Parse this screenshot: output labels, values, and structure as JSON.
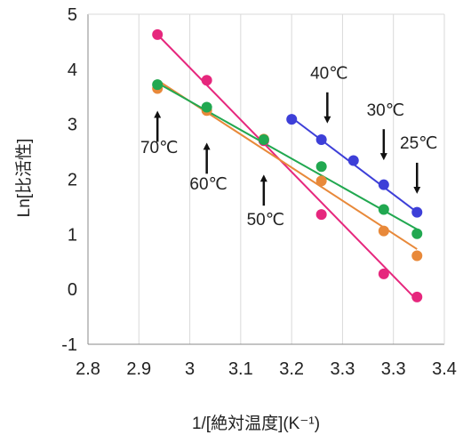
{
  "chart_data": {
    "type": "scatter",
    "xlabel": "1/[絶対温度](K⁻¹)",
    "ylabel": "Ln[比活性]",
    "xlim": [
      2.8,
      3.4
    ],
    "ylim": [
      -1,
      5
    ],
    "x_ticks": [
      "2.8",
      "2.9",
      "3",
      "3.1",
      "3.2",
      "3.3",
      "3.3",
      "3.4"
    ],
    "y_ticks": [
      "-1",
      "0",
      "1",
      "2",
      "3",
      "4",
      "5"
    ],
    "grid": "vertical",
    "series": [
      {
        "color": "#e6277d",
        "points": [
          [
            2.917,
            4.63
          ],
          [
            3.0,
            3.8
          ],
          [
            3.096,
            2.7
          ],
          [
            3.193,
            1.36
          ],
          [
            3.298,
            0.28
          ],
          [
            3.354,
            -0.14
          ]
        ],
        "fit": [
          [
            2.917,
            4.63
          ],
          [
            3.354,
            -0.2
          ]
        ]
      },
      {
        "color": "#e8893a",
        "points": [
          [
            2.917,
            3.65
          ],
          [
            3.0,
            3.25
          ],
          [
            3.096,
            2.73
          ],
          [
            3.193,
            1.97
          ],
          [
            3.298,
            1.06
          ],
          [
            3.354,
            0.61
          ]
        ],
        "fit": [
          [
            2.917,
            3.8
          ],
          [
            3.354,
            0.73
          ]
        ]
      },
      {
        "color": "#21a850",
        "points": [
          [
            2.917,
            3.72
          ],
          [
            3.0,
            3.31
          ],
          [
            3.096,
            2.72
          ],
          [
            3.193,
            2.23
          ],
          [
            3.298,
            1.45
          ],
          [
            3.354,
            1.01
          ]
        ],
        "fit": [
          [
            2.917,
            3.75
          ],
          [
            3.354,
            1.09
          ]
        ]
      },
      {
        "color": "#3d3fd8",
        "points": [
          [
            3.143,
            3.09
          ],
          [
            3.193,
            2.72
          ],
          [
            3.247,
            2.34
          ],
          [
            3.298,
            1.9
          ],
          [
            3.354,
            1.4
          ]
        ],
        "fit": [
          [
            3.143,
            3.12
          ],
          [
            3.354,
            1.4
          ]
        ]
      }
    ],
    "annotations": [
      {
        "text": "70℃",
        "x": 2.917,
        "y": 2.48,
        "arrow": "up",
        "arrow_from": 2.68,
        "arrow_to": 3.18
      },
      {
        "text": "60℃",
        "x": 3.0,
        "y": 1.81,
        "arrow": "up",
        "arrow_from": 2.1,
        "arrow_to": 2.6
      },
      {
        "text": "50℃",
        "x": 3.096,
        "y": 1.17,
        "arrow": "up",
        "arrow_from": 1.52,
        "arrow_to": 2.02
      },
      {
        "text": "40℃",
        "x": 3.203,
        "y": 3.83,
        "arrow": "down",
        "arrow_from": 3.58,
        "arrow_to": 3.08
      },
      {
        "text": "30℃",
        "x": 3.298,
        "y": 3.16,
        "arrow": "down",
        "arrow_from": 2.91,
        "arrow_to": 2.41
      },
      {
        "text": "25℃",
        "x": 3.354,
        "y": 2.56,
        "arrow": "down",
        "arrow_from": 2.3,
        "arrow_to": 1.8
      }
    ]
  }
}
